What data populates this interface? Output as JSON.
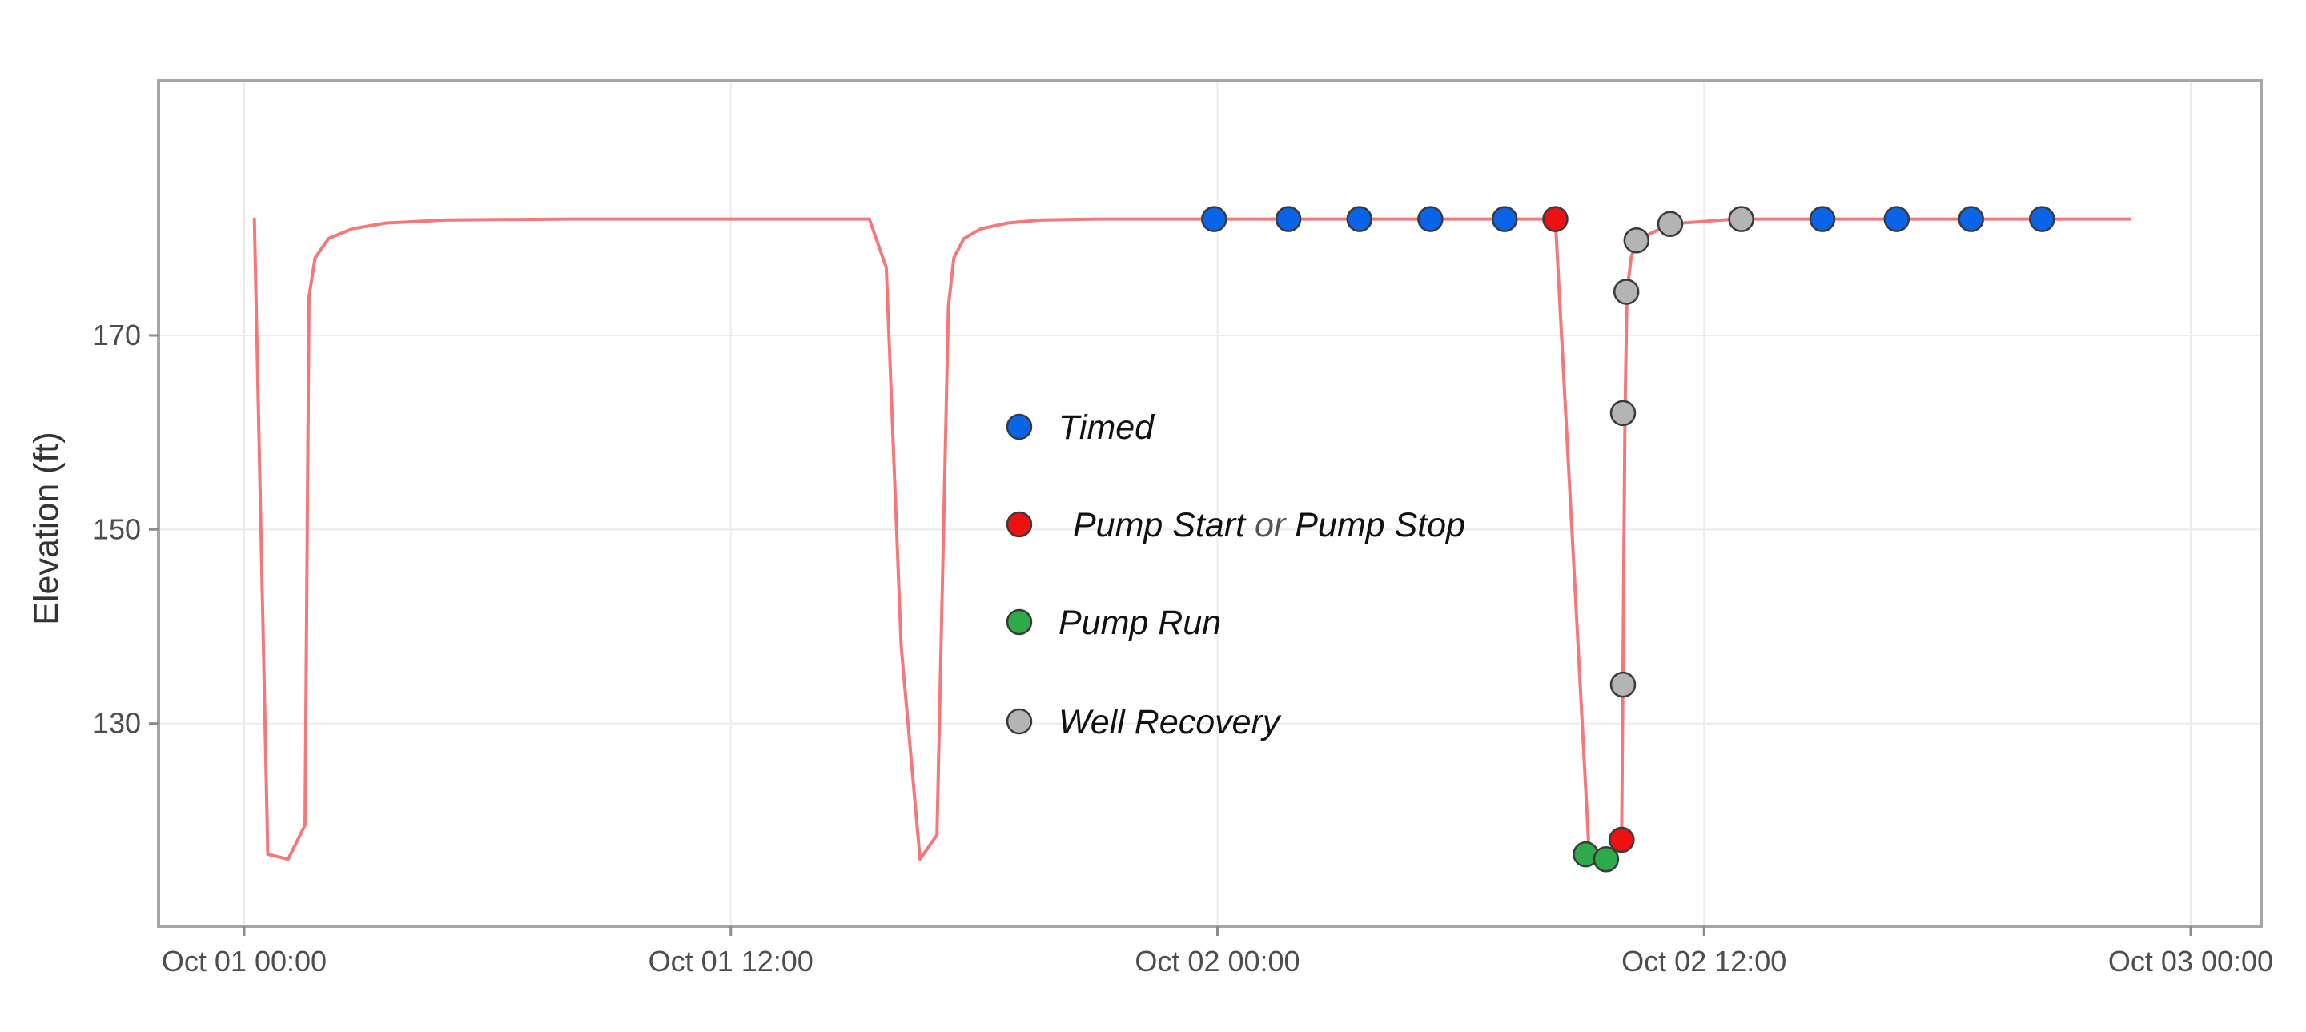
{
  "chart_data": {
    "type": "scatter",
    "xlabel": "",
    "ylabel": "Elevation (ft)",
    "x_axis_type": "datetime",
    "xlim": [
      "2023-10-01T00:00",
      "2023-10-03T00:00"
    ],
    "x_ticks": [
      {
        "value": "2023-10-01T00:00",
        "label": "Oct 01 00:00"
      },
      {
        "value": "2023-10-01T12:00",
        "label": "Oct 01 12:00"
      },
      {
        "value": "2023-10-02T00:00",
        "label": "Oct 02 00:00"
      },
      {
        "value": "2023-10-02T12:00",
        "label": "Oct 02 12:00"
      },
      {
        "value": "2023-10-03T00:00",
        "label": "Oct 03 00:00"
      }
    ],
    "ylim": [
      109,
      196
    ],
    "y_ticks": [
      {
        "value": 130,
        "label": "130"
      },
      {
        "value": 150,
        "label": "150"
      },
      {
        "value": 170,
        "label": "170"
      }
    ],
    "grid": true,
    "legend_position": "center",
    "colors": {
      "line": "#f4787a",
      "timed": "#0a64e8",
      "pump_start_stop": "#ee1111",
      "pump_run": "#2eaa4a",
      "well_recovery": "#b4b4b4",
      "grid": "#ebebeb",
      "frame": "#a6a6a6"
    },
    "line": {
      "x": [
        "2023-10-01T00:15",
        "2023-10-01T00:35",
        "2023-10-01T01:05",
        "2023-10-01T01:30",
        "2023-10-01T01:36",
        "2023-10-01T01:45",
        "2023-10-01T02:05",
        "2023-10-01T02:40",
        "2023-10-01T03:30",
        "2023-10-01T05:00",
        "2023-10-01T08:00",
        "2023-10-01T12:00",
        "2023-10-01T15:25",
        "2023-10-01T15:50",
        "2023-10-01T16:12",
        "2023-10-01T16:40",
        "2023-10-01T17:05",
        "2023-10-01T17:22",
        "2023-10-01T17:30",
        "2023-10-01T17:45",
        "2023-10-01T18:10",
        "2023-10-01T18:50",
        "2023-10-01T19:40",
        "2023-10-01T21:00",
        "2023-10-01T23:55",
        "2023-10-02T08:20",
        "2023-10-02T09:10",
        "2023-10-02T09:30",
        "2023-10-02T09:42",
        "2023-10-02T09:58",
        "2023-10-02T10:03",
        "2023-10-02T10:06",
        "2023-10-02T10:12",
        "2023-10-02T10:20",
        "2023-10-02T11:10",
        "2023-10-02T12:45",
        "2023-10-02T22:30"
      ],
      "y": [
        182,
        116.5,
        116,
        119.5,
        174,
        178,
        180,
        181,
        181.6,
        181.9,
        182,
        182,
        182,
        177,
        138,
        116,
        118.5,
        173,
        178,
        180,
        181,
        181.6,
        181.9,
        182,
        182,
        182,
        116.5,
        116,
        117,
        118,
        162,
        174.5,
        178,
        179.8,
        181.5,
        182,
        182
      ]
    },
    "series": [
      {
        "name": "Timed",
        "x": [
          "2023-10-01T23:55",
          "2023-10-02T01:45",
          "2023-10-02T03:30",
          "2023-10-02T05:15",
          "2023-10-02T07:05",
          "2023-10-02T14:55",
          "2023-10-02T16:45",
          "2023-10-02T18:35",
          "2023-10-02T20:20"
        ],
        "y": [
          182,
          182,
          182,
          182,
          182,
          182,
          182,
          182,
          182
        ]
      },
      {
        "name": "Pump Start or Pump Stop",
        "x": [
          "2023-10-02T08:20",
          "2023-10-02T09:58"
        ],
        "y": [
          182,
          118
        ]
      },
      {
        "name": "Pump Run",
        "x": [
          "2023-10-02T09:05",
          "2023-10-02T09:35"
        ],
        "y": [
          116.5,
          116
        ]
      },
      {
        "name": "Well Recovery",
        "x": [
          "2023-10-02T10:00",
          "2023-10-02T10:00",
          "2023-10-02T10:05",
          "2023-10-02T10:20",
          "2023-10-02T11:10",
          "2023-10-02T12:55"
        ],
        "y": [
          134,
          162,
          174.5,
          179.8,
          181.5,
          182
        ]
      }
    ],
    "legend": [
      {
        "parts": [
          {
            "text": "Timed",
            "italic": true
          }
        ],
        "color": "#0a64e8"
      },
      {
        "parts": [
          {
            "text": "Pump Start",
            "italic": true
          },
          {
            "text": " or ",
            "italic": false
          },
          {
            "text": "Pump Stop",
            "italic": true
          }
        ],
        "color": "#ee1111"
      },
      {
        "parts": [
          {
            "text": "Pump Run",
            "italic": true
          }
        ],
        "color": "#2eaa4a"
      },
      {
        "parts": [
          {
            "text": "Well Recovery",
            "italic": true
          }
        ],
        "color": "#b4b4b4"
      }
    ]
  }
}
